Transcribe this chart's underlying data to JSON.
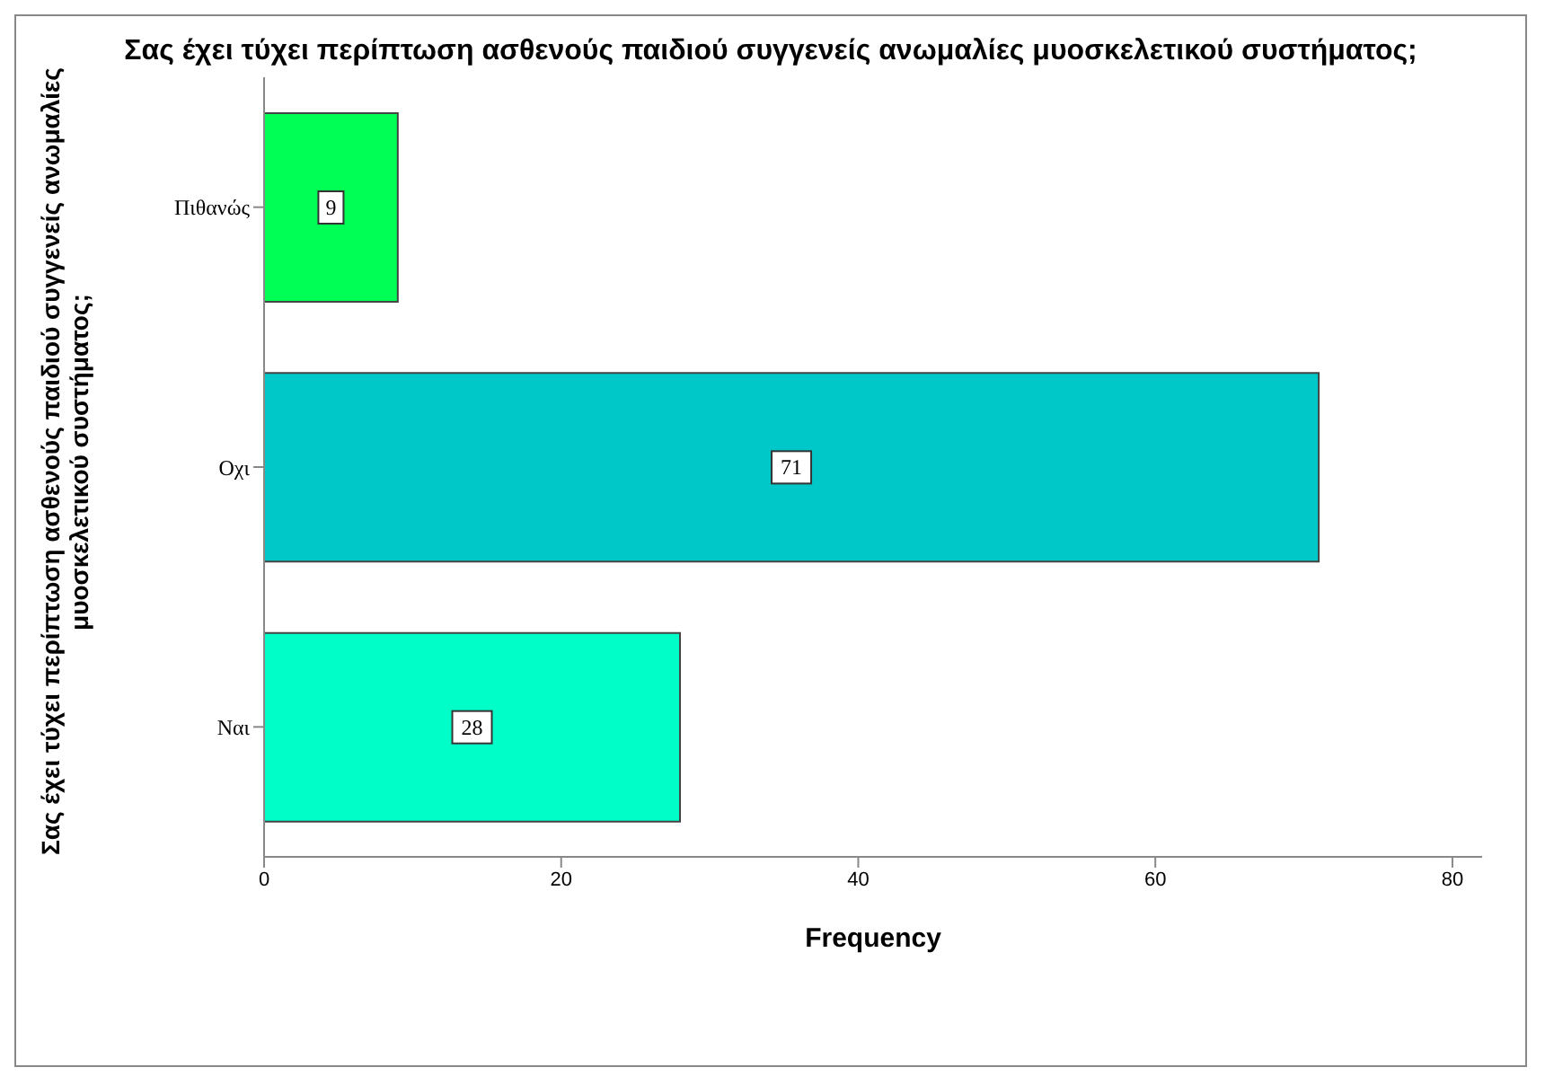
{
  "chart_data": {
    "type": "bar",
    "orientation": "horizontal",
    "title": "Σας έχει τύχει περίπτωση ασθενούς παιδιού συγγενείς ανωμαλίες μυοσκελετικού συστήματος;",
    "ylabel": "Σας έχει τύχει περίπτωση ασθενούς παιδιού συγγενείς ανωμαλίες μυοσκελετικού συστήματος;",
    "xlabel": "Frequency",
    "categories": [
      "Πιθανώς",
      "Οχι",
      "Ναι"
    ],
    "values": [
      9,
      71,
      28
    ],
    "colors": [
      "#00ff55",
      "#00c8c8",
      "#00ffc8"
    ],
    "xlim": [
      0,
      82
    ],
    "xticks": [
      0,
      20,
      40,
      60,
      80
    ],
    "grid": false,
    "data_labels": true
  }
}
